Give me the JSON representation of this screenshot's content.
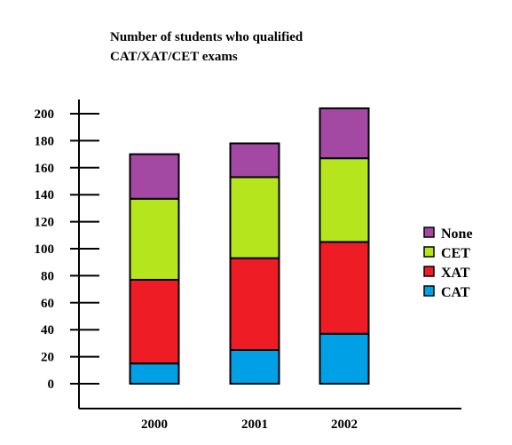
{
  "chart_data": {
    "type": "bar",
    "stacked": true,
    "title_lines": [
      "Number of students who qualified",
      "CAT/XAT/CET exams"
    ],
    "categories": [
      "2000",
      "2001",
      "2002"
    ],
    "series": [
      {
        "name": "CAT",
        "color": "#00a0e6",
        "values": [
          15,
          25,
          37
        ]
      },
      {
        "name": "XAT",
        "color": "#ee1c24",
        "values": [
          62,
          68,
          68
        ]
      },
      {
        "name": "CET",
        "color": "#b5e61d",
        "values": [
          60,
          60,
          62
        ]
      },
      {
        "name": "None",
        "color": "#a349a4",
        "values": [
          33,
          25,
          37
        ]
      }
    ],
    "yticks": [
      "0",
      "20",
      "40",
      "60",
      "80",
      "100",
      "120",
      "140",
      "160",
      "180",
      "200"
    ],
    "ylim": [
      0,
      220
    ],
    "legend_order": [
      "None",
      "CET",
      "XAT",
      "CAT"
    ],
    "legend_position": "right"
  }
}
